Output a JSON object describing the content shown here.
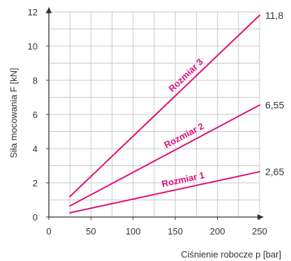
{
  "chart_data": {
    "type": "line",
    "xlabel": "Ciśnienie robocze p [bar]",
    "ylabel": "Siła mocowania F [kN]",
    "xlim": [
      0,
      250
    ],
    "ylim": [
      0,
      12
    ],
    "xticks": [
      "0",
      "50",
      "100",
      "150",
      "200",
      "250"
    ],
    "yticks": [
      "0",
      "2",
      "4",
      "6",
      "8",
      "10",
      "12"
    ],
    "grid": true,
    "line_color": "#e0107a",
    "series": [
      {
        "name": "Rozmiar 1",
        "x": [
          25,
          250
        ],
        "y": [
          0.25,
          2.65
        ],
        "end_label": "2,65"
      },
      {
        "name": "Rozmiar 2",
        "x": [
          25,
          250
        ],
        "y": [
          0.65,
          6.55
        ],
        "end_label": "6,55"
      },
      {
        "name": "Rozmiar 3",
        "x": [
          25,
          250
        ],
        "y": [
          1.2,
          11.8
        ],
        "end_label": "11,8"
      }
    ]
  }
}
